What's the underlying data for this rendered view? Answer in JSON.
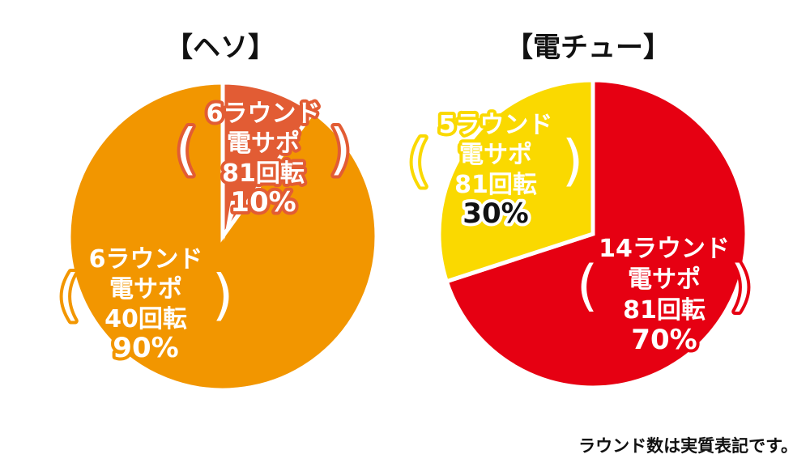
{
  "chart_data": [
    {
      "type": "pie",
      "title": "【ヘソ】",
      "slices": [
        {
          "label_lines": [
            "6ラウンド",
            "電サポ",
            "81回転",
            "10%"
          ],
          "value": 10,
          "color": "#e25c34"
        },
        {
          "label_lines": [
            "6ラウンド",
            "電サポ",
            "40回転",
            "90%"
          ],
          "value": 90,
          "color": "#f29600"
        }
      ]
    },
    {
      "type": "pie",
      "title": "【電チュー】",
      "slices": [
        {
          "label_lines": [
            "14ラウンド",
            "電サポ",
            "81回転",
            "70%"
          ],
          "value": 70,
          "color": "#e60012"
        },
        {
          "label_lines": [
            "5ラウンド",
            "電サポ",
            "81回転",
            "30%"
          ],
          "value": 30,
          "color": "#fad900"
        }
      ]
    }
  ],
  "footnote": "ラウンド数は実質表記です。"
}
